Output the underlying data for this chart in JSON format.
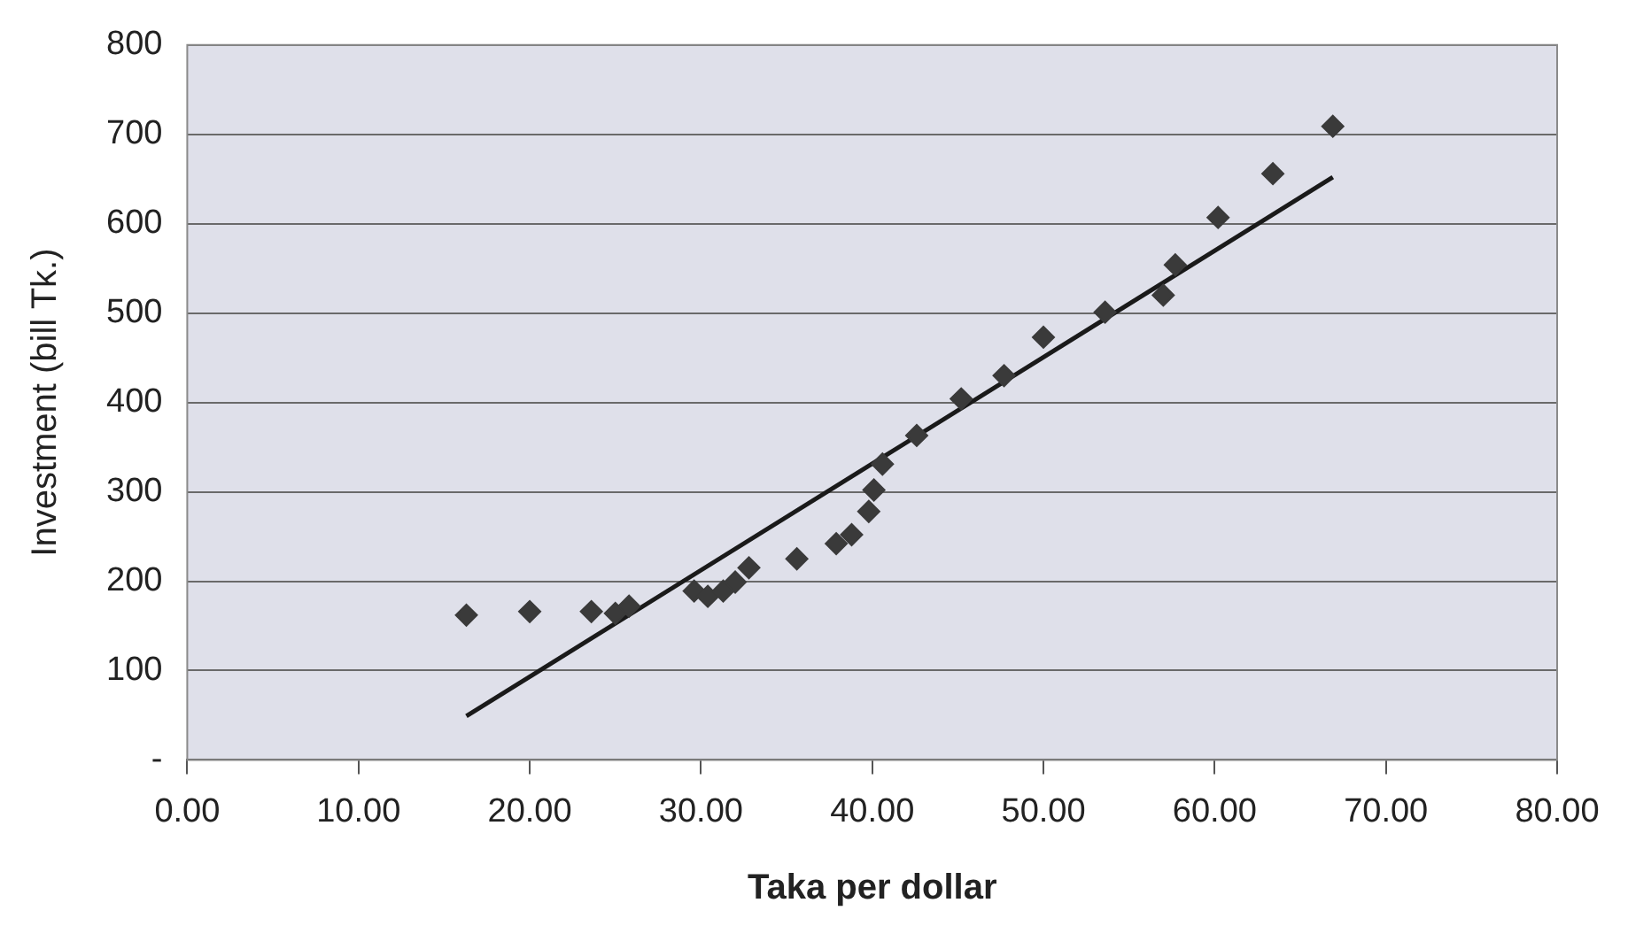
{
  "chart_data": {
    "type": "scatter",
    "xlabel": "Taka per dollar",
    "ylabel": "Investment (bill Tk.)",
    "xlim": [
      0,
      80
    ],
    "xticks": [
      {
        "value": 0,
        "label": "0.00"
      },
      {
        "value": 10,
        "label": "10.00"
      },
      {
        "value": 20,
        "label": "20.00"
      },
      {
        "value": 30,
        "label": "30.00"
      },
      {
        "value": 40,
        "label": "40.00"
      },
      {
        "value": 50,
        "label": "50.00"
      },
      {
        "value": 60,
        "label": "60.00"
      },
      {
        "value": 70,
        "label": "70.00"
      },
      {
        "value": 80,
        "label": "80.00"
      }
    ],
    "ylim": [
      0,
      800
    ],
    "yticks": [
      {
        "value": 0,
        "label": "-"
      },
      100,
      200,
      300,
      400,
      500,
      600,
      700,
      800
    ],
    "grid": "y",
    "legend": false,
    "marker": "diamond",
    "series": [
      {
        "color": "#3a3a3a",
        "x": [
          16.3,
          20.0,
          23.6,
          25.0,
          25.8,
          29.6,
          30.4,
          31.3,
          32.0,
          32.8,
          35.6,
          37.9,
          38.8,
          39.8,
          40.1,
          40.6,
          42.6,
          45.2,
          47.7,
          50.0,
          53.6,
          57.0,
          57.7,
          60.2,
          63.4,
          66.9
        ],
        "values": [
          162,
          166,
          166,
          164,
          172,
          189,
          183,
          189,
          199,
          215,
          225,
          242,
          252,
          278,
          302,
          331,
          363,
          404,
          430,
          473,
          501,
          520,
          554,
          607,
          656,
          709
        ]
      },
      {
        "type": "line",
        "color": "#1a1a1a",
        "x": [
          16.3,
          66.9
        ],
        "values": [
          49,
          652
        ],
        "marker": "none",
        "line_style": "solid"
      }
    ]
  }
}
